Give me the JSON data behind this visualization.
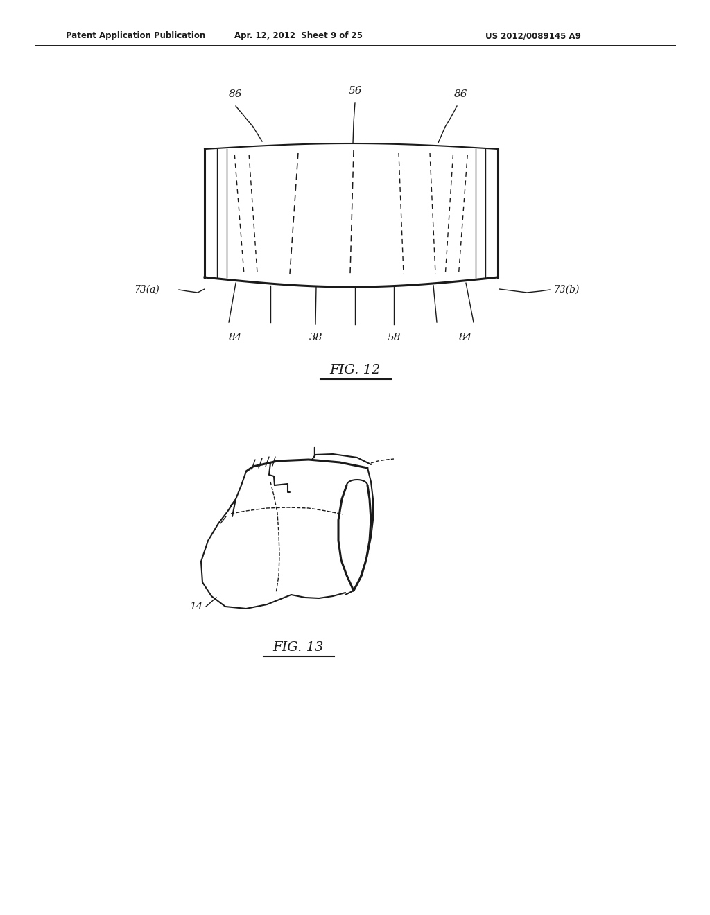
{
  "background_color": "#ffffff",
  "header_left": "Patent Application Publication",
  "header_center": "Apr. 12, 2012  Sheet 9 of 25",
  "header_right": "US 2012/0089145 A9",
  "fig12_label": "FIG. 12",
  "fig13_label": "FIG. 13",
  "color": "#1a1a1a"
}
